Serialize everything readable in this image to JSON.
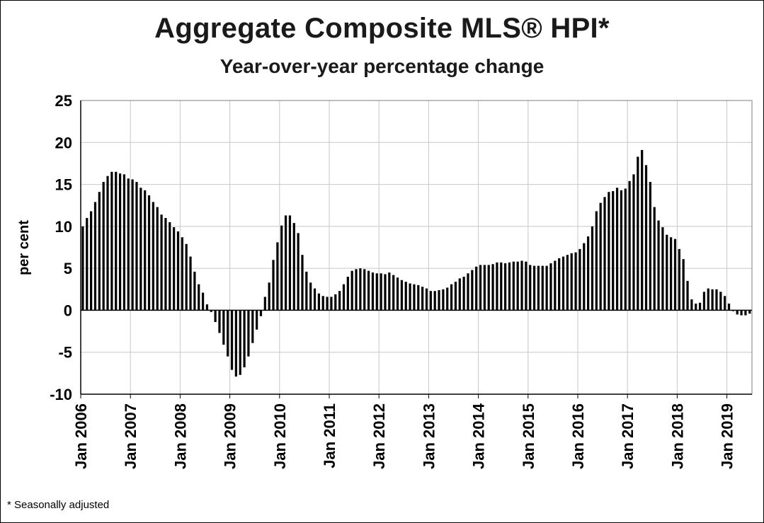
{
  "footnote": "* Seasonally adjusted",
  "chart_data": {
    "type": "bar",
    "title": "Aggregate Composite MLS® HPI*",
    "subtitle": "Year-over-year percentage change",
    "ylabel": "per cent",
    "xlabel": "",
    "ylim": [
      -10,
      25
    ],
    "yticks": [
      25,
      20,
      15,
      10,
      5,
      0,
      -5,
      -10
    ],
    "grid": true,
    "legend": "none",
    "bar_color": "#000000",
    "xtick_labels": [
      "Jan 2006",
      "Jan 2007",
      "Jan 2008",
      "Jan 2009",
      "Jan 2010",
      "Jan 2011",
      "Jan 2012",
      "Jan 2013",
      "Jan 2014",
      "Jan 2015",
      "Jan 2016",
      "Jan 2017",
      "Jan 2018",
      "Jan 2019"
    ],
    "start": "2006-01",
    "series": [
      {
        "values": [
          10.0,
          11.0,
          11.8,
          12.9,
          14.1,
          15.3,
          16.0,
          16.5,
          16.5,
          16.3,
          16.2,
          15.7,
          15.6,
          15.3,
          14.6,
          14.3,
          13.7,
          12.9,
          12.3,
          11.4,
          11.0,
          10.5,
          9.9,
          9.4,
          8.7,
          7.9,
          6.4,
          4.6,
          3.1,
          2.1,
          0.7,
          -0.2,
          -1.4,
          -2.7,
          -4.1,
          -5.5,
          -7.1,
          -7.9,
          -7.7,
          -6.8,
          -5.5,
          -3.9,
          -2.3,
          -0.7,
          1.6,
          3.3,
          6.0,
          8.1,
          10.1,
          11.3,
          11.3,
          10.4,
          9.2,
          6.6,
          4.6,
          3.3,
          2.6,
          2.0,
          1.7,
          1.6,
          1.6,
          1.9,
          2.3,
          3.1,
          4.0,
          4.7,
          4.9,
          5.0,
          4.9,
          4.7,
          4.5,
          4.4,
          4.4,
          4.3,
          4.5,
          4.2,
          3.9,
          3.6,
          3.4,
          3.2,
          3.1,
          3.0,
          2.8,
          2.6,
          2.3,
          2.3,
          2.4,
          2.5,
          2.7,
          3.1,
          3.4,
          3.8,
          4.0,
          4.4,
          4.8,
          5.2,
          5.4,
          5.4,
          5.4,
          5.5,
          5.7,
          5.7,
          5.6,
          5.7,
          5.8,
          5.8,
          5.9,
          5.8,
          5.4,
          5.3,
          5.3,
          5.3,
          5.3,
          5.6,
          5.9,
          6.2,
          6.4,
          6.6,
          6.8,
          6.9,
          7.3,
          8.0,
          8.8,
          10.0,
          11.8,
          12.8,
          13.5,
          14.1,
          14.2,
          14.6,
          14.3,
          14.5,
          15.4,
          16.2,
          18.3,
          19.1,
          17.3,
          15.3,
          12.3,
          10.7,
          9.9,
          9.0,
          8.7,
          8.5,
          7.3,
          6.1,
          3.5,
          1.3,
          0.8,
          0.9,
          2.2,
          2.6,
          2.5,
          2.5,
          2.2,
          1.7,
          0.8,
          -0.1,
          -0.5,
          -0.6,
          -0.6,
          -0.4
        ]
      }
    ]
  }
}
